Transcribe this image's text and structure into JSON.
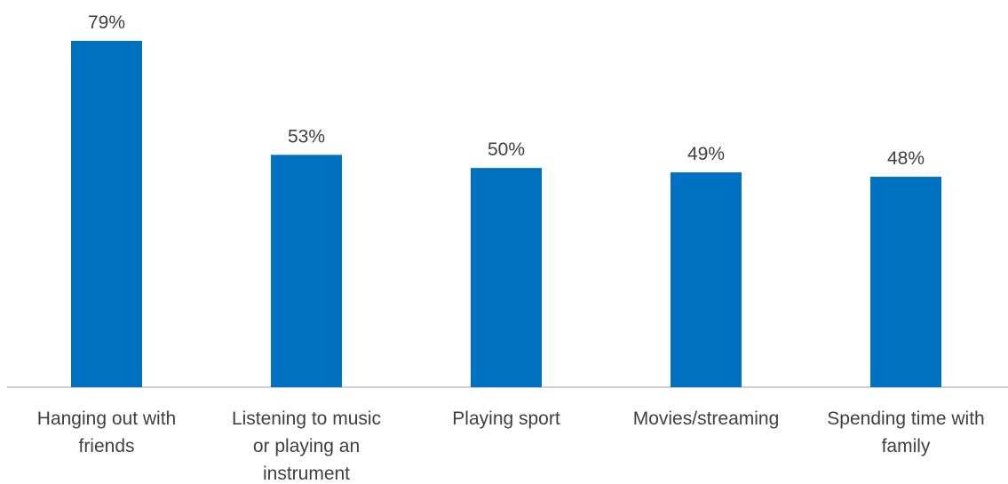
{
  "chart_data": {
    "type": "bar",
    "title": "",
    "xlabel": "",
    "ylabel": "",
    "categories": [
      [
        "Hanging out with",
        "friends"
      ],
      [
        "Listening to music",
        "or playing an",
        "instrument"
      ],
      [
        "Playing sport"
      ],
      [
        "Movies/streaming"
      ],
      [
        "Spending time with",
        "family"
      ]
    ],
    "values": [
      79,
      53,
      50,
      49,
      48
    ],
    "data_labels": [
      "79%",
      "53%",
      "50%",
      "49%",
      "48%"
    ],
    "ylim": [
      0,
      85
    ],
    "grid": false,
    "legend": "none",
    "bar_color": "#0070C0",
    "axis_color": "#BFBFBF"
  }
}
